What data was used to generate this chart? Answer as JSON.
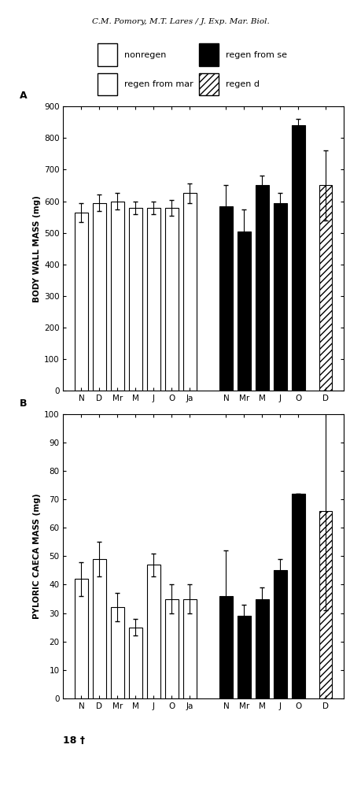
{
  "header": "C.M. Pomory, M.T. Lares / J. Exp. Mar. Biol.",
  "panel_A": {
    "ylabel": "BODY WALL MASS (mg)",
    "panel_label": "A",
    "ylim": [
      0,
      900
    ],
    "yticks": [
      0,
      100,
      200,
      300,
      400,
      500,
      600,
      700,
      800,
      900
    ],
    "nonregen_values": [
      565,
      595,
      600,
      580,
      580,
      580,
      625
    ],
    "nonregen_errors": [
      30,
      25,
      25,
      20,
      20,
      25,
      30
    ],
    "regen_sep_values": [
      585,
      505,
      650,
      595,
      840
    ],
    "regen_sep_errors": [
      65,
      70,
      30,
      30,
      20
    ],
    "regen_d_values": [
      650
    ],
    "regen_d_errors": [
      110
    ],
    "x_nonregen": [
      1,
      2,
      3,
      4,
      5,
      6,
      7
    ],
    "x_regen_sep": [
      9,
      10,
      11,
      12,
      13
    ],
    "x_regen_d": [
      14.5
    ],
    "xtick_pos": [
      1,
      2,
      3,
      4,
      5,
      6,
      7,
      9,
      10,
      11,
      12,
      13,
      14.5
    ],
    "xtick_labels": [
      "N",
      "D",
      "Mr",
      "M",
      "J",
      "O",
      "Ja",
      "N",
      "Mr",
      "M",
      "J",
      "O",
      "D"
    ]
  },
  "panel_B": {
    "ylabel": "PYLORIC CAECA MASS (mg)",
    "panel_label": "B",
    "ylim": [
      0,
      100
    ],
    "yticks": [
      0,
      10,
      20,
      30,
      40,
      50,
      60,
      70,
      80,
      90,
      100
    ],
    "nonregen_values": [
      42,
      49,
      32,
      25,
      47,
      35,
      35
    ],
    "nonregen_errors": [
      6,
      6,
      5,
      3,
      4,
      5,
      5
    ],
    "regen_sep_values": [
      36,
      29,
      35,
      45,
      72
    ],
    "regen_sep_errors": [
      16,
      4,
      4,
      4,
      0
    ],
    "regen_d_values": [
      66
    ],
    "regen_d_errors": [
      35
    ],
    "x_nonregen": [
      1,
      2,
      3,
      4,
      5,
      6,
      7
    ],
    "x_regen_sep": [
      9,
      10,
      11,
      12,
      13
    ],
    "x_regen_d": [
      14.5
    ],
    "xtick_pos": [
      1,
      2,
      3,
      4,
      5,
      6,
      7,
      9,
      10,
      11,
      12,
      13,
      14.5
    ],
    "xtick_labels": [
      "N",
      "D",
      "Mr",
      "M",
      "J",
      "O",
      "Ja",
      "N",
      "Mr",
      "M",
      "J",
      "O",
      "D"
    ]
  },
  "legend_items": [
    {
      "label": "nonregen",
      "facecolor": "white",
      "edgecolor": "black",
      "hatch": ""
    },
    {
      "label": "regen from se",
      "facecolor": "black",
      "edgecolor": "black",
      "hatch": ""
    },
    {
      "label": "regen from mar",
      "facecolor": "white",
      "edgecolor": "black",
      "hatch": "==="
    },
    {
      "label": "regen d",
      "facecolor": "white",
      "edgecolor": "black",
      "hatch": "////"
    }
  ],
  "footer_text": "18 †",
  "bar_width": 0.7,
  "capsize": 2,
  "xlim": [
    0,
    15.5
  ]
}
